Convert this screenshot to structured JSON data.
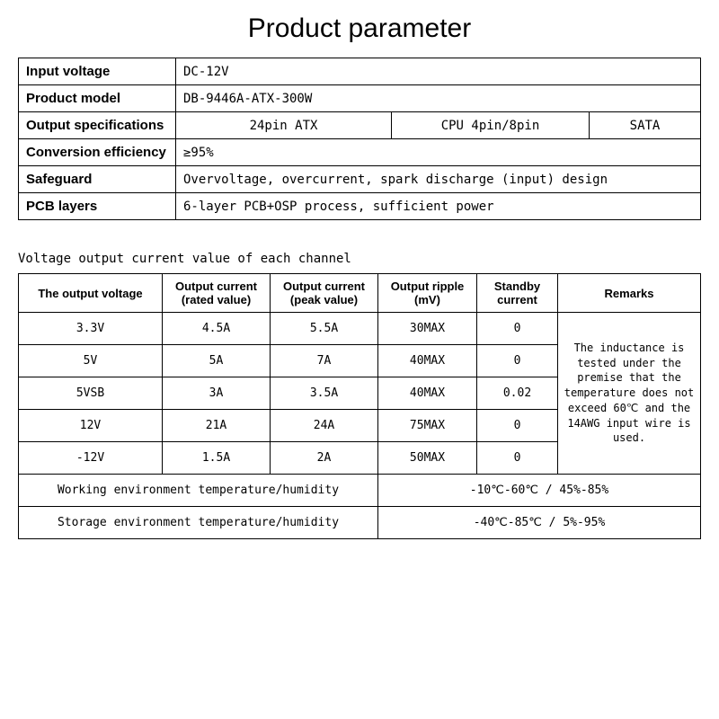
{
  "title": "Product parameter",
  "param_table": {
    "rows": [
      {
        "label": "Input voltage",
        "value": "DC-12V"
      },
      {
        "label": "Product model",
        "value": "DB-9446A-ATX-300W"
      }
    ],
    "output_spec": {
      "label": "Output specifications",
      "values": [
        "24pin ATX",
        "CPU 4pin/8pin",
        "SATA"
      ]
    },
    "more_rows": [
      {
        "label": "Conversion efficiency",
        "value": "≥95%"
      },
      {
        "label": "Safeguard",
        "value": "Overvoltage, overcurrent, spark discharge (input) design"
      },
      {
        "label": "PCB layers",
        "value": "6-layer PCB+OSP process, sufficient power"
      }
    ]
  },
  "subtitle": "Voltage output current value of each channel",
  "voltage_table": {
    "headers": [
      "The output voltage",
      "Output current (rated value)",
      "Output current (peak value)",
      "Output ripple (mV)",
      "Standby current",
      "Remarks"
    ],
    "col_widths": [
      "160px",
      "120px",
      "120px",
      "110px",
      "90px",
      "auto"
    ],
    "rows": [
      [
        "3.3V",
        "4.5A",
        "5.5A",
        "30MAX",
        "0"
      ],
      [
        "5V",
        "5A",
        "7A",
        "40MAX",
        "0"
      ],
      [
        "5VSB",
        "3A",
        "3.5A",
        "40MAX",
        "0.02"
      ],
      [
        "12V",
        "21A",
        "24A",
        "75MAX",
        "0"
      ],
      [
        "-12V",
        "1.5A",
        "2A",
        "50MAX",
        "0"
      ]
    ],
    "remarks": "The inductance is tested under the premise that the temperature does not exceed 60℃ and the 14AWG input wire is used.",
    "env_rows": [
      {
        "label": "Working environment temperature/humidity",
        "value": "-10℃-60℃ / 45%-85%"
      },
      {
        "label": "Storage environment temperature/humidity",
        "value": "-40℃-85℃ / 5%-95%"
      }
    ]
  }
}
